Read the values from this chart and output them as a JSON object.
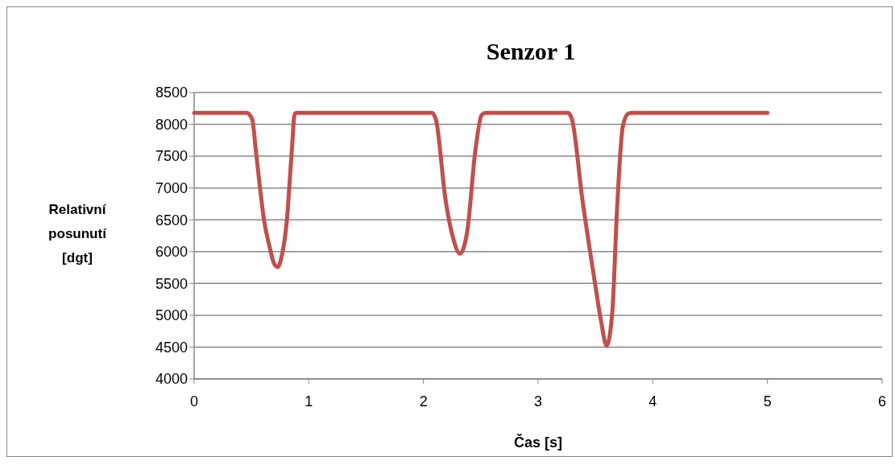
{
  "chart_data": {
    "type": "line",
    "title": "Senzor 1",
    "xlabel": "Čas [s]",
    "ylabel": "Relativní posunutí [dgt]",
    "xlim": [
      0,
      6
    ],
    "xticks": [
      0,
      1,
      2,
      3,
      4,
      5,
      6
    ],
    "ylim": [
      4000,
      8500
    ],
    "yticks": [
      4000,
      4500,
      5000,
      5500,
      6000,
      6500,
      7000,
      7500,
      8000,
      8500
    ],
    "grid": "y",
    "marker": "none",
    "line_style": "solid",
    "series": [
      {
        "color": "#c0504d",
        "x": [
          0,
          0.2,
          0.457,
          0.506,
          0.541,
          0.611,
          0.66,
          0.7,
          0.731,
          0.76,
          0.808,
          0.85,
          0.878,
          0.906,
          1.2,
          1.6,
          2.0,
          2.073,
          2.108,
          2.192,
          2.262,
          2.318,
          2.381,
          2.452,
          2.508,
          2.543,
          2.8,
          3.1,
          3.26,
          3.295,
          3.386,
          3.492,
          3.548,
          3.597,
          3.647,
          3.689,
          3.738,
          3.787,
          3.822,
          4.2,
          4.6,
          5.0
        ],
        "values": [
          8180,
          8180,
          8180,
          8080,
          7540,
          6480,
          6060,
          5800,
          5760,
          5900,
          6480,
          7540,
          8170,
          8180,
          8180,
          8180,
          8180,
          8180,
          8080,
          6820,
          6190,
          5970,
          6310,
          7580,
          8150,
          8180,
          8180,
          8180,
          8180,
          8080,
          6820,
          5550,
          4920,
          4520,
          5050,
          6690,
          7960,
          8170,
          8180,
          8180,
          8180,
          8180
        ]
      }
    ]
  }
}
